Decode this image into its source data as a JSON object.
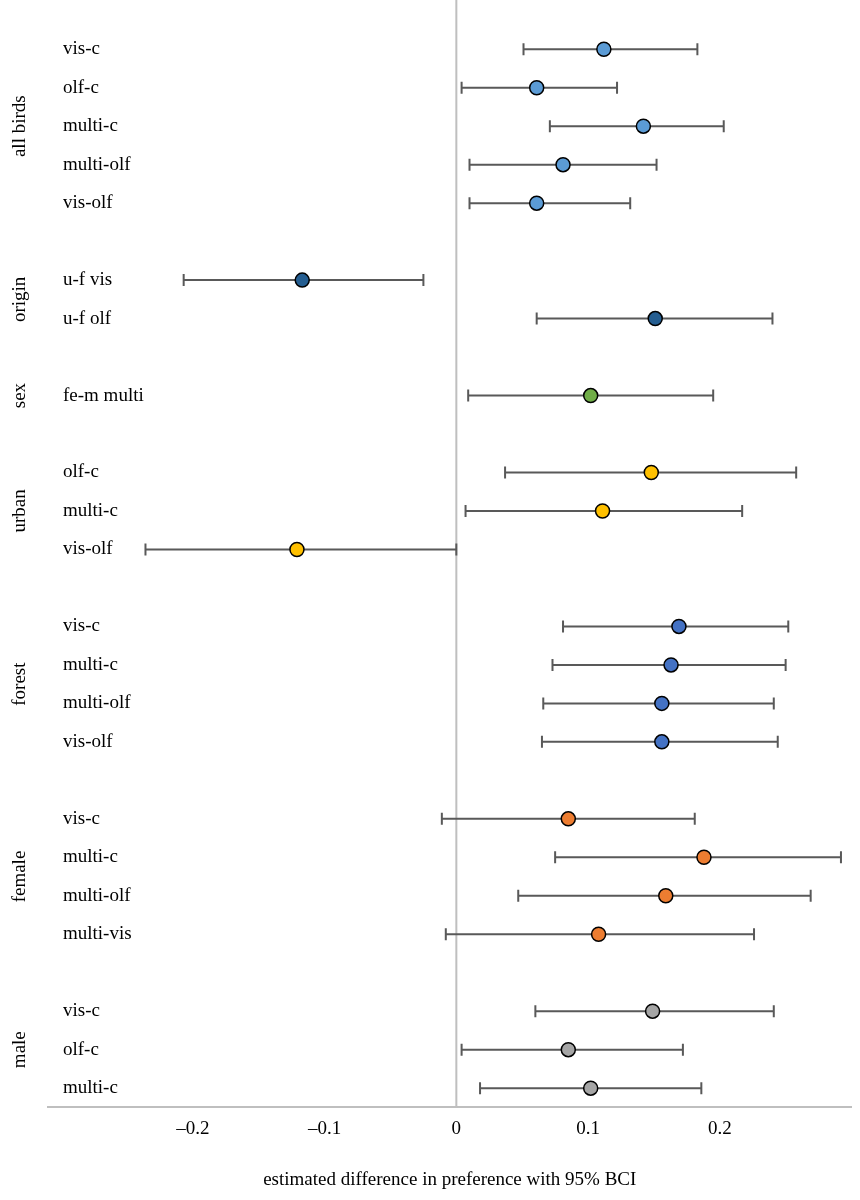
{
  "chart_data": {
    "type": "scatter",
    "orientation": "horizontal",
    "xlabel": "estimated difference in preference with 95% BCI",
    "categories": [
      "vis-c",
      "olf-c",
      "multi-c",
      "multi-olf",
      "vis-olf",
      null,
      "u-f vis",
      "u-f olf",
      null,
      "fe-m multi",
      null,
      "olf-c",
      "multi-c",
      "vis-olf",
      null,
      "vis-c",
      "multi-c",
      "multi-olf",
      "vis-olf",
      null,
      "vis-c",
      "multi-c",
      "multi-olf",
      "multi-vis",
      null,
      "vis-c",
      "olf-c",
      "multi-c"
    ],
    "values": [
      0.112,
      0.061,
      0.142,
      0.081,
      0.061,
      null,
      -0.117,
      0.151,
      null,
      0.102,
      null,
      0.148,
      0.111,
      -0.121,
      null,
      0.169,
      0.163,
      0.156,
      0.156,
      null,
      0.085,
      0.188,
      0.159,
      0.108,
      null,
      0.149,
      0.085,
      0.102
    ],
    "errors": [
      [
        0.051,
        0.183
      ],
      [
        0.004,
        0.122
      ],
      [
        0.071,
        0.203
      ],
      [
        0.01,
        0.152
      ],
      [
        0.01,
        0.132
      ],
      null,
      [
        -0.207,
        -0.025
      ],
      [
        0.061,
        0.24
      ],
      null,
      [
        0.009,
        0.195
      ],
      null,
      [
        0.037,
        0.258
      ],
      [
        0.007,
        0.217
      ],
      [
        -0.236,
        0
      ],
      null,
      [
        0.081,
        0.252
      ],
      [
        0.073,
        0.25
      ],
      [
        0.066,
        0.241
      ],
      [
        0.065,
        0.244
      ],
      null,
      [
        -0.011,
        0.181
      ],
      [
        0.075,
        0.292
      ],
      [
        0.047,
        0.269
      ],
      [
        -0.008,
        0.226
      ],
      null,
      [
        0.06,
        0.241
      ],
      [
        0.004,
        0.172
      ],
      [
        0.018,
        0.186
      ]
    ],
    "colors": [
      "#5b9bd5",
      "#5b9bd5",
      "#5b9bd5",
      "#5b9bd5",
      "#5b9bd5",
      null,
      "#255e91",
      "#255e91",
      null,
      "#70ad47",
      null,
      "#ffc000",
      "#ffc000",
      "#ffc000",
      null,
      "#4472c4",
      "#4472c4",
      "#4472c4",
      "#4472c4",
      null,
      "#ed7d31",
      "#ed7d31",
      "#ed7d31",
      "#ed7d31",
      null,
      "#a5a5a5",
      "#a5a5a5",
      "#a5a5a5"
    ],
    "annotations": [
      "all birds",
      "origin",
      "sex",
      "urban",
      "forest",
      "female",
      "male"
    ],
    "xlim": [
      -0.31,
      0.3
    ],
    "xticks": [
      {
        "value": -0.2,
        "label": "–0.2"
      },
      {
        "value": -0.1,
        "label": "–0.1"
      },
      0,
      0.1,
      0.2
    ],
    "ref_lines": [
      {
        "axis": "x",
        "value": 0,
        "color": "#bfbfbf"
      }
    ],
    "grid": false,
    "legend": false,
    "marker": "circle"
  }
}
